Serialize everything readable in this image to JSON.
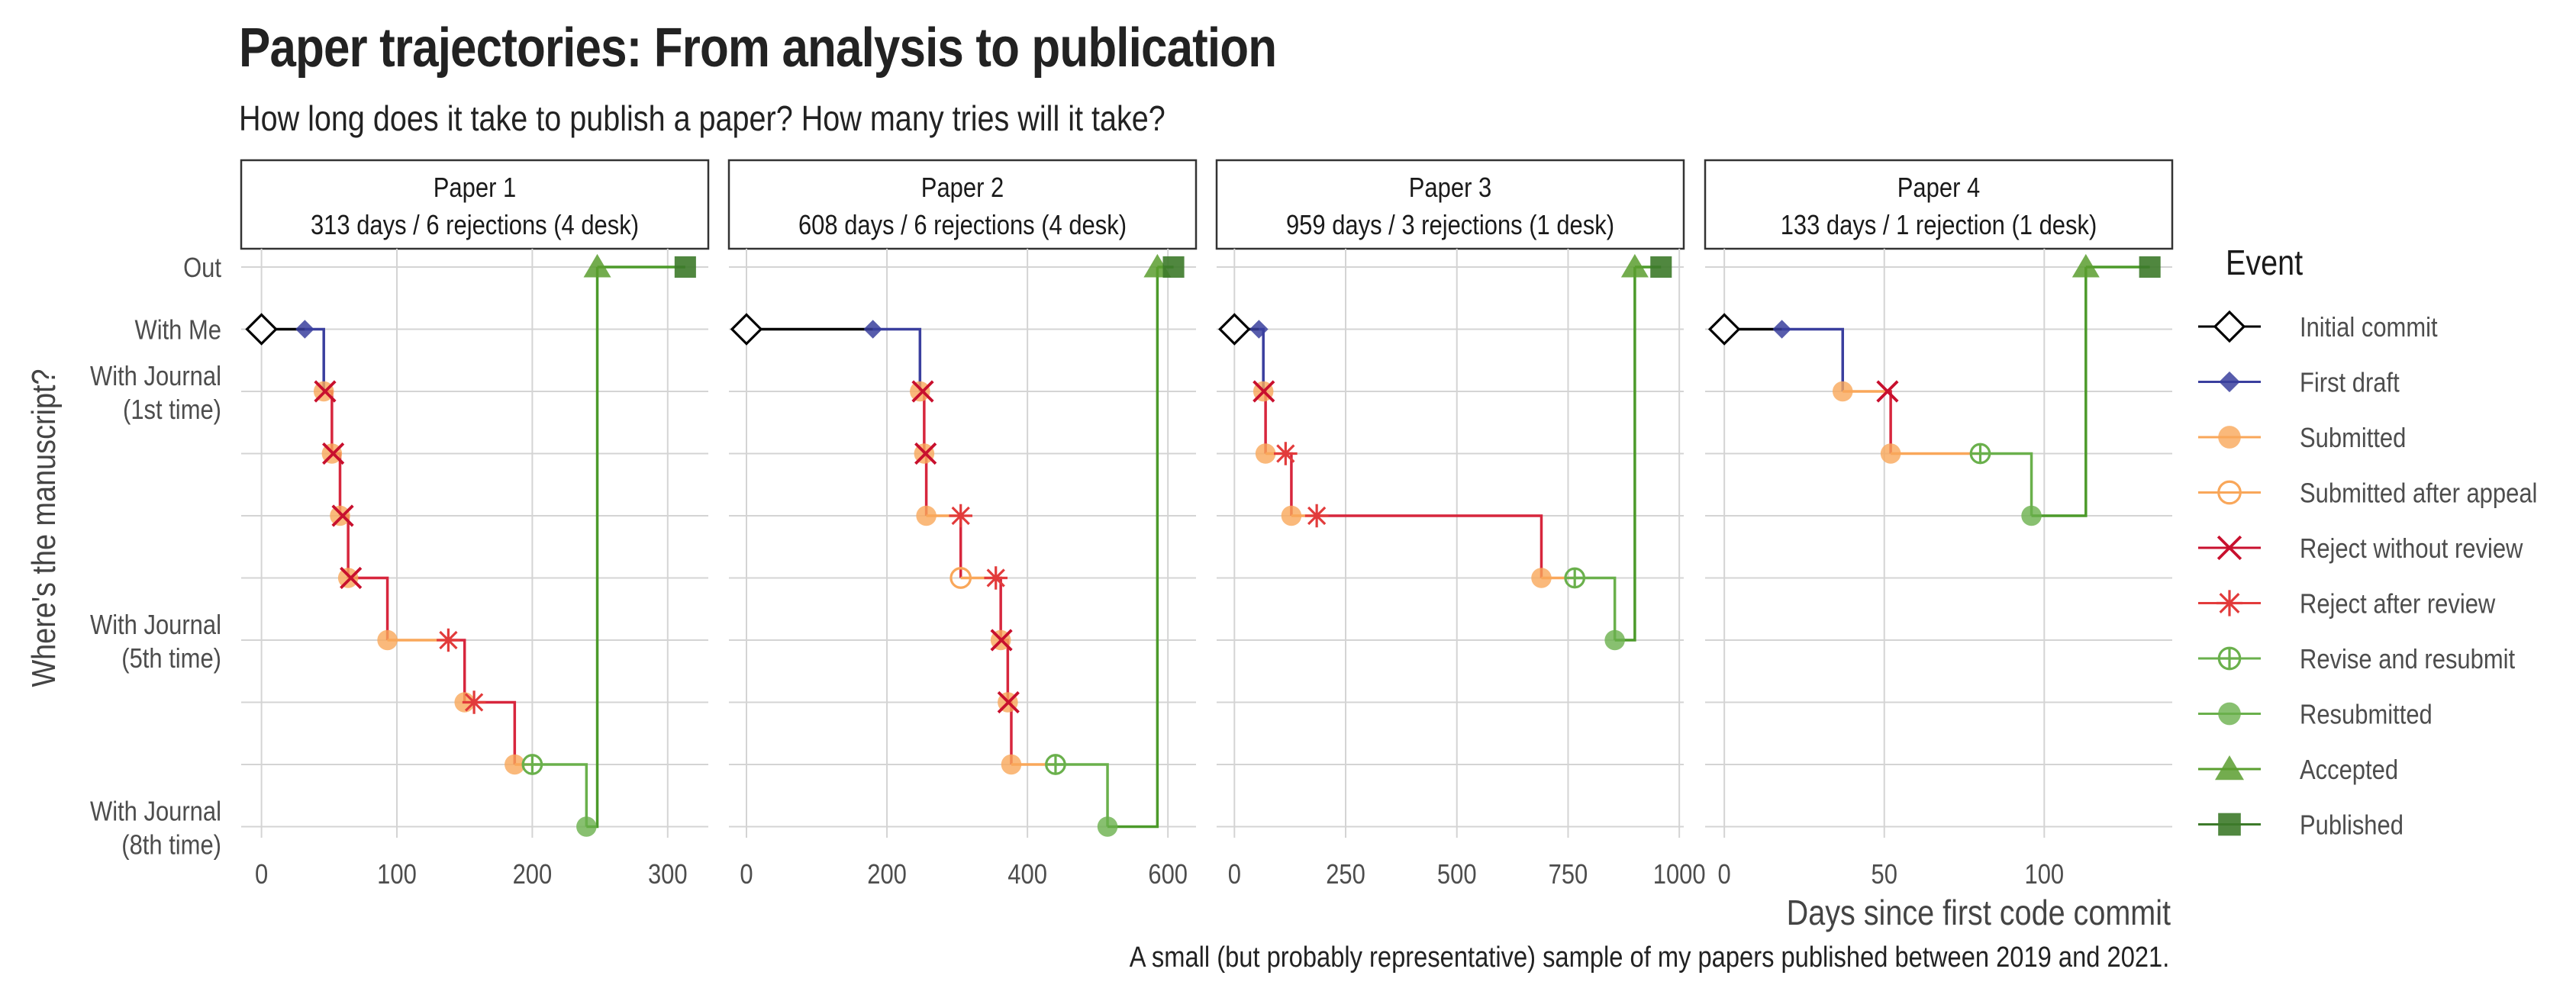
{
  "title": "Paper trajectories: From analysis to publication",
  "subtitle": "How long does it take to publish a paper? How many tries will it take?",
  "caption": "A small (but probably representative) sample of my papers published between 2019 and 2021.",
  "chart_data": {
    "type": "line",
    "xlabel": "Days since first code commit",
    "ylabel": "Where's the manuscript?",
    "y_ticks": [
      {
        "level": 0,
        "label": "Out"
      },
      {
        "level": 1,
        "label": "With Me"
      },
      {
        "level": 2,
        "label": "With Journal\n(1st time)"
      },
      {
        "level": 6,
        "label": "With Journal\n(5th time)"
      },
      {
        "level": 9,
        "label": "With Journal\n(8th time)"
      }
    ],
    "ylim": [
      0,
      9
    ],
    "legend": {
      "title": "Event",
      "position": "right",
      "items": [
        {
          "label": "Initial commit",
          "shape": "diamond-open",
          "color": "#000000"
        },
        {
          "label": "First draft",
          "shape": "diamond",
          "color": "#3a3f9e"
        },
        {
          "label": "Submitted",
          "shape": "circle",
          "color": "#f9a75a"
        },
        {
          "label": "Submitted after appeal",
          "shape": "circle-open",
          "color": "#f9a75a"
        },
        {
          "label": "Reject without review",
          "shape": "x",
          "color": "#c8102e"
        },
        {
          "label": "Reject after review",
          "shape": "asterisk",
          "color": "#e23b3b"
        },
        {
          "label": "Revise and resubmit",
          "shape": "circle-plus",
          "color": "#6ab04c"
        },
        {
          "label": "Resubmitted",
          "shape": "circle",
          "color": "#6ab04c"
        },
        {
          "label": "Accepted",
          "shape": "triangle",
          "color": "#5a9e2f"
        },
        {
          "label": "Published",
          "shape": "square",
          "color": "#3d7a2a"
        }
      ]
    },
    "colors": {
      "draft": "#3a3f9e",
      "submitted": "#f9a75a",
      "rejected": "#d7263d",
      "revision": "#6ab04c",
      "accepted": "#4c9a2a",
      "initial": "#000000"
    },
    "panels": [
      {
        "name": "Paper 1",
        "summary": "313 days / 6 rejections (4 desk)",
        "xlim": [
          -15,
          330
        ],
        "xticks": [
          0,
          100,
          200,
          300
        ],
        "events": [
          {
            "x": 0,
            "y": 1,
            "event": "Initial commit"
          },
          {
            "x": 32,
            "y": 1,
            "event": "First draft"
          },
          {
            "x": 46,
            "y": 2,
            "event": "Submitted"
          },
          {
            "x": 47,
            "y": 2,
            "event": "Reject without review"
          },
          {
            "x": 52,
            "y": 3,
            "event": "Submitted"
          },
          {
            "x": 53,
            "y": 3,
            "event": "Reject without review"
          },
          {
            "x": 58,
            "y": 4,
            "event": "Submitted"
          },
          {
            "x": 60,
            "y": 4,
            "event": "Reject without review"
          },
          {
            "x": 64,
            "y": 5,
            "event": "Submitted"
          },
          {
            "x": 66,
            "y": 5,
            "event": "Reject without review"
          },
          {
            "x": 93,
            "y": 6,
            "event": "Submitted"
          },
          {
            "x": 138,
            "y": 6,
            "event": "Reject after review"
          },
          {
            "x": 150,
            "y": 7,
            "event": "Submitted"
          },
          {
            "x": 157,
            "y": 7,
            "event": "Reject after review"
          },
          {
            "x": 187,
            "y": 8,
            "event": "Submitted"
          },
          {
            "x": 200,
            "y": 8,
            "event": "Revise and resubmit"
          },
          {
            "x": 240,
            "y": 9,
            "event": "Resubmitted"
          },
          {
            "x": 248,
            "y": 0,
            "event": "Accepted"
          },
          {
            "x": 313,
            "y": 0,
            "event": "Published"
          }
        ]
      },
      {
        "name": "Paper 2",
        "summary": "608 days / 6 rejections (4 desk)",
        "xlim": [
          -25,
          640
        ],
        "xticks": [
          0,
          200,
          400,
          600
        ],
        "events": [
          {
            "x": 0,
            "y": 1,
            "event": "Initial commit"
          },
          {
            "x": 180,
            "y": 1,
            "event": "First draft"
          },
          {
            "x": 247,
            "y": 2,
            "event": "Submitted"
          },
          {
            "x": 251,
            "y": 2,
            "event": "Reject without review"
          },
          {
            "x": 253,
            "y": 3,
            "event": "Submitted"
          },
          {
            "x": 255,
            "y": 3,
            "event": "Reject without review"
          },
          {
            "x": 256,
            "y": 4,
            "event": "Submitted"
          },
          {
            "x": 305,
            "y": 4,
            "event": "Reject after review"
          },
          {
            "x": 305,
            "y": 5,
            "event": "Submitted after appeal"
          },
          {
            "x": 355,
            "y": 5,
            "event": "Reject after review"
          },
          {
            "x": 362,
            "y": 6,
            "event": "Submitted"
          },
          {
            "x": 363,
            "y": 6,
            "event": "Reject without review"
          },
          {
            "x": 372,
            "y": 7,
            "event": "Submitted"
          },
          {
            "x": 373,
            "y": 7,
            "event": "Reject without review"
          },
          {
            "x": 377,
            "y": 8,
            "event": "Submitted"
          },
          {
            "x": 440,
            "y": 8,
            "event": "Revise and resubmit"
          },
          {
            "x": 514,
            "y": 9,
            "event": "Resubmitted"
          },
          {
            "x": 585,
            "y": 0,
            "event": "Accepted"
          },
          {
            "x": 608,
            "y": 0,
            "event": "Published"
          }
        ]
      },
      {
        "name": "Paper 3",
        "summary": "959 days / 3 rejections (1 desk)",
        "xlim": [
          -40,
          1010
        ],
        "xticks": [
          0,
          250,
          500,
          750,
          1000
        ],
        "events": [
          {
            "x": 0,
            "y": 1,
            "event": "Initial commit"
          },
          {
            "x": 55,
            "y": 1,
            "event": "First draft"
          },
          {
            "x": 65,
            "y": 2,
            "event": "Submitted"
          },
          {
            "x": 66,
            "y": 2,
            "event": "Reject without review"
          },
          {
            "x": 70,
            "y": 3,
            "event": "Submitted"
          },
          {
            "x": 115,
            "y": 3,
            "event": "Reject after review"
          },
          {
            "x": 128,
            "y": 4,
            "event": "Submitted"
          },
          {
            "x": 185,
            "y": 4,
            "event": "Reject after review"
          },
          {
            "x": 690,
            "y": 5,
            "event": "Submitted"
          },
          {
            "x": 765,
            "y": 5,
            "event": "Revise and resubmit"
          },
          {
            "x": 855,
            "y": 6,
            "event": "Resubmitted"
          },
          {
            "x": 900,
            "y": 0,
            "event": "Accepted"
          },
          {
            "x": 959,
            "y": 0,
            "event": "Published"
          }
        ]
      },
      {
        "name": "Paper 4",
        "summary": "133 days / 1 rejection (1 desk)",
        "xlim": [
          -6,
          140
        ],
        "xticks": [
          0,
          50,
          100
        ],
        "events": [
          {
            "x": 0,
            "y": 1,
            "event": "Initial commit"
          },
          {
            "x": 18,
            "y": 1,
            "event": "First draft"
          },
          {
            "x": 37,
            "y": 2,
            "event": "Submitted"
          },
          {
            "x": 51,
            "y": 2,
            "event": "Reject without review"
          },
          {
            "x": 52,
            "y": 3,
            "event": "Submitted"
          },
          {
            "x": 80,
            "y": 3,
            "event": "Revise and resubmit"
          },
          {
            "x": 96,
            "y": 4,
            "event": "Resubmitted"
          },
          {
            "x": 113,
            "y": 0,
            "event": "Accepted"
          },
          {
            "x": 133,
            "y": 0,
            "event": "Published"
          }
        ]
      }
    ]
  }
}
